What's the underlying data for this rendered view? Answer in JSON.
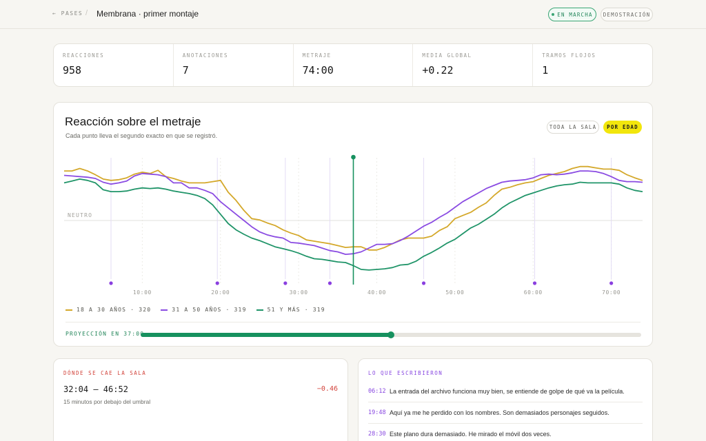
{
  "header": {
    "back_label": "← PASES",
    "separator": "/",
    "title": "Membrana · primer montaje",
    "status_label": "EN MARCHA",
    "demo_label": "DEMOSTRACIÓN"
  },
  "stats": [
    {
      "label": "REACCIONES",
      "value": "958"
    },
    {
      "label": "ANOTACIONES",
      "value": "7"
    },
    {
      "label": "METRAJE",
      "value": "74:00"
    },
    {
      "label": "MEDIA GLOBAL",
      "value": "+0.22"
    },
    {
      "label": "TRAMOS FLOJOS",
      "value": "1"
    }
  ],
  "chart_panel": {
    "title": "Reacción sobre el metraje",
    "subtitle": "Cada punto lleva el segundo exacto en que se registró.",
    "toggle_all": "TODA LA SALA",
    "toggle_age": "POR EDAD",
    "projection_label": "PROYECCIÓN EN 37:00",
    "projection_progress": 0.5
  },
  "chart_data": {
    "type": "line",
    "title": "Reacción sobre el metraje",
    "xlabel": "",
    "ylabel": "",
    "x_range": [
      0,
      74
    ],
    "y_range": [
      -1,
      1
    ],
    "baseline_label": "NEUTRO",
    "tick_labels": [
      "10:00",
      "20:00",
      "30:00",
      "40:00",
      "50:00",
      "60:00",
      "70:00"
    ],
    "ticks_min": [
      10,
      20,
      30,
      40,
      50,
      60,
      70
    ],
    "playhead_min": 37,
    "annotations_min": [
      6,
      19.6,
      28.3,
      34,
      46,
      60.2,
      70
    ],
    "series": [
      {
        "name": "18 A 30 AÑOS · 320",
        "color": "#d4a82a",
        "x": [
          0,
          1,
          2,
          3,
          4,
          5,
          6,
          7,
          8,
          9,
          10,
          11,
          12,
          13,
          14,
          15,
          16,
          17,
          18,
          19,
          20,
          21,
          22,
          23,
          24,
          25,
          26,
          27,
          28,
          29,
          30,
          31,
          32,
          33,
          34,
          35,
          36,
          37,
          38,
          39,
          40,
          41,
          42,
          43,
          44,
          45,
          46,
          47,
          48,
          49,
          50,
          51,
          52,
          53,
          54,
          55,
          56,
          57,
          58,
          59,
          60,
          61,
          62,
          63,
          64,
          65,
          66,
          67,
          68,
          69,
          70,
          71,
          72,
          73,
          74
        ],
        "values": [
          0.79,
          0.79,
          0.83,
          0.79,
          0.73,
          0.66,
          0.64,
          0.65,
          0.68,
          0.74,
          0.77,
          0.75,
          0.8,
          0.7,
          0.67,
          0.63,
          0.6,
          0.6,
          0.6,
          0.62,
          0.64,
          0.45,
          0.32,
          0.16,
          0.03,
          0.01,
          -0.04,
          -0.08,
          -0.15,
          -0.2,
          -0.24,
          -0.31,
          -0.33,
          -0.35,
          -0.37,
          -0.4,
          -0.43,
          -0.42,
          -0.42,
          -0.47,
          -0.47,
          -0.43,
          -0.37,
          -0.31,
          -0.28,
          -0.28,
          -0.28,
          -0.25,
          -0.16,
          -0.1,
          0.03,
          0.08,
          0.13,
          0.21,
          0.28,
          0.4,
          0.5,
          0.53,
          0.57,
          0.6,
          0.62,
          0.67,
          0.72,
          0.75,
          0.78,
          0.83,
          0.86,
          0.86,
          0.84,
          0.82,
          0.82,
          0.8,
          0.73,
          0.68,
          0.64
        ]
      },
      {
        "name": "31 A 50 AÑOS · 319",
        "color": "#8a4be2",
        "x": [
          0,
          1,
          2,
          3,
          4,
          5,
          6,
          7,
          8,
          9,
          10,
          11,
          12,
          13,
          14,
          15,
          16,
          17,
          18,
          19,
          20,
          21,
          22,
          23,
          24,
          25,
          26,
          27,
          28,
          29,
          30,
          31,
          32,
          33,
          34,
          35,
          36,
          37,
          38,
          39,
          40,
          41,
          42,
          43,
          44,
          45,
          46,
          47,
          48,
          49,
          50,
          51,
          52,
          53,
          54,
          55,
          56,
          57,
          58,
          59,
          60,
          61,
          62,
          63,
          64,
          65,
          66,
          67,
          68,
          69,
          70,
          71,
          72,
          73,
          74
        ],
        "values": [
          0.72,
          0.71,
          0.7,
          0.69,
          0.67,
          0.61,
          0.58,
          0.6,
          0.63,
          0.71,
          0.75,
          0.74,
          0.73,
          0.7,
          0.6,
          0.6,
          0.52,
          0.52,
          0.48,
          0.43,
          0.3,
          0.2,
          0.1,
          0,
          -0.1,
          -0.18,
          -0.23,
          -0.26,
          -0.28,
          -0.35,
          -0.36,
          -0.38,
          -0.4,
          -0.44,
          -0.48,
          -0.5,
          -0.54,
          -0.53,
          -0.5,
          -0.44,
          -0.38,
          -0.38,
          -0.37,
          -0.32,
          -0.25,
          -0.17,
          -0.09,
          -0.03,
          0.05,
          0.12,
          0.21,
          0.3,
          0.37,
          0.44,
          0.51,
          0.56,
          0.61,
          0.63,
          0.64,
          0.65,
          0.68,
          0.73,
          0.74,
          0.73,
          0.74,
          0.76,
          0.79,
          0.79,
          0.78,
          0.75,
          0.7,
          0.64,
          0.62,
          0.62,
          0.61
        ]
      },
      {
        "name": "51 Y MÁS · 319",
        "color": "#1f9468",
        "x": [
          0,
          1,
          2,
          3,
          4,
          5,
          6,
          7,
          8,
          9,
          10,
          11,
          12,
          13,
          14,
          15,
          16,
          17,
          18,
          19,
          20,
          21,
          22,
          23,
          24,
          25,
          26,
          27,
          28,
          29,
          30,
          31,
          32,
          33,
          34,
          35,
          36,
          37,
          38,
          39,
          40,
          41,
          42,
          43,
          44,
          45,
          46,
          47,
          48,
          49,
          50,
          51,
          52,
          53,
          54,
          55,
          56,
          57,
          58,
          59,
          60,
          61,
          62,
          63,
          64,
          65,
          66,
          67,
          68,
          69,
          70,
          71,
          72,
          73,
          74
        ],
        "values": [
          0.6,
          0.63,
          0.66,
          0.64,
          0.6,
          0.49,
          0.46,
          0.46,
          0.47,
          0.5,
          0.52,
          0.51,
          0.52,
          0.5,
          0.47,
          0.45,
          0.43,
          0.4,
          0.35,
          0.25,
          0.1,
          -0.05,
          -0.15,
          -0.22,
          -0.28,
          -0.32,
          -0.37,
          -0.42,
          -0.45,
          -0.48,
          -0.52,
          -0.57,
          -0.61,
          -0.62,
          -0.64,
          -0.66,
          -0.67,
          -0.72,
          -0.78,
          -0.79,
          -0.78,
          -0.77,
          -0.75,
          -0.71,
          -0.7,
          -0.65,
          -0.57,
          -0.51,
          -0.44,
          -0.36,
          -0.3,
          -0.21,
          -0.12,
          -0.06,
          0.02,
          0.1,
          0.2,
          0.28,
          0.34,
          0.4,
          0.44,
          0.48,
          0.52,
          0.55,
          0.57,
          0.58,
          0.61,
          0.6,
          0.6,
          0.6,
          0.6,
          0.58,
          0.52,
          0.48,
          0.46
        ]
      }
    ]
  },
  "drop_card": {
    "heading": "DÓNDE SE CAE LA SALA",
    "range": "32:04 — 46:52",
    "delta": "−0.46",
    "note": "15 minutos por debajo del umbral"
  },
  "comments_card": {
    "heading": "LO QUE ESCRIBIERON",
    "items": [
      {
        "time": "06:12",
        "text": "La entrada del archivo funciona muy bien, se entiende de golpe de qué va la película."
      },
      {
        "time": "19:48",
        "text": "Aquí ya me he perdido con los nombres. Son demasiados personajes seguidos."
      },
      {
        "time": "28:30",
        "text": "Este plano dura demasiado. He mirado el móvil dos veces."
      }
    ]
  },
  "colors": {
    "accent_green": "#17915f",
    "accent_yellow": "#f2e60c",
    "accent_purple": "#8a4be2",
    "alert_red": "#d2423a"
  }
}
